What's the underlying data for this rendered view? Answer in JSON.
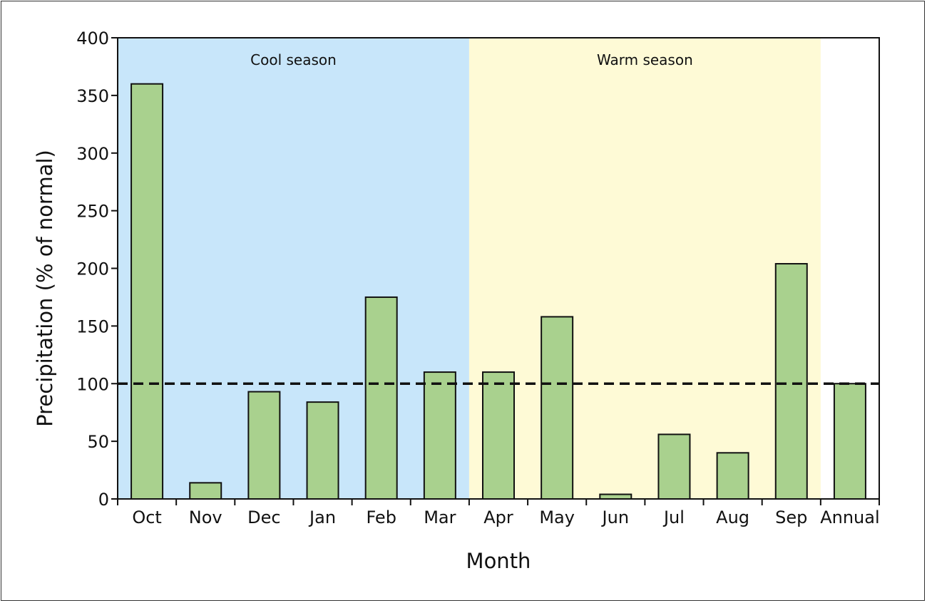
{
  "chart_data": {
    "type": "bar",
    "title": "",
    "xlabel": "Month",
    "ylabel": "Precipitation (% of normal)",
    "ylim": [
      0,
      400
    ],
    "yticks": [
      0,
      50,
      100,
      150,
      200,
      250,
      300,
      350,
      400
    ],
    "categories": [
      "Oct",
      "Nov",
      "Dec",
      "Jan",
      "Feb",
      "Mar",
      "Apr",
      "May",
      "Jun",
      "Jul",
      "Aug",
      "Sep",
      "Annual"
    ],
    "values": [
      360,
      14,
      93,
      84,
      175,
      110,
      110,
      158,
      4,
      56,
      40,
      204,
      100
    ],
    "reference_line": {
      "value": 100,
      "style": "dashed"
    },
    "bands": [
      {
        "label": "Cool season",
        "from": "Oct",
        "to": "Mar",
        "color": "#c8e6fa"
      },
      {
        "label": "Warm season",
        "from": "Apr",
        "to": "Sep",
        "color": "#fefad6"
      }
    ],
    "grid": false,
    "legend": "none",
    "colors": {
      "bar_fill": "#a9d18e",
      "bar_stroke": "#111111",
      "reference_line": "#111111"
    }
  }
}
